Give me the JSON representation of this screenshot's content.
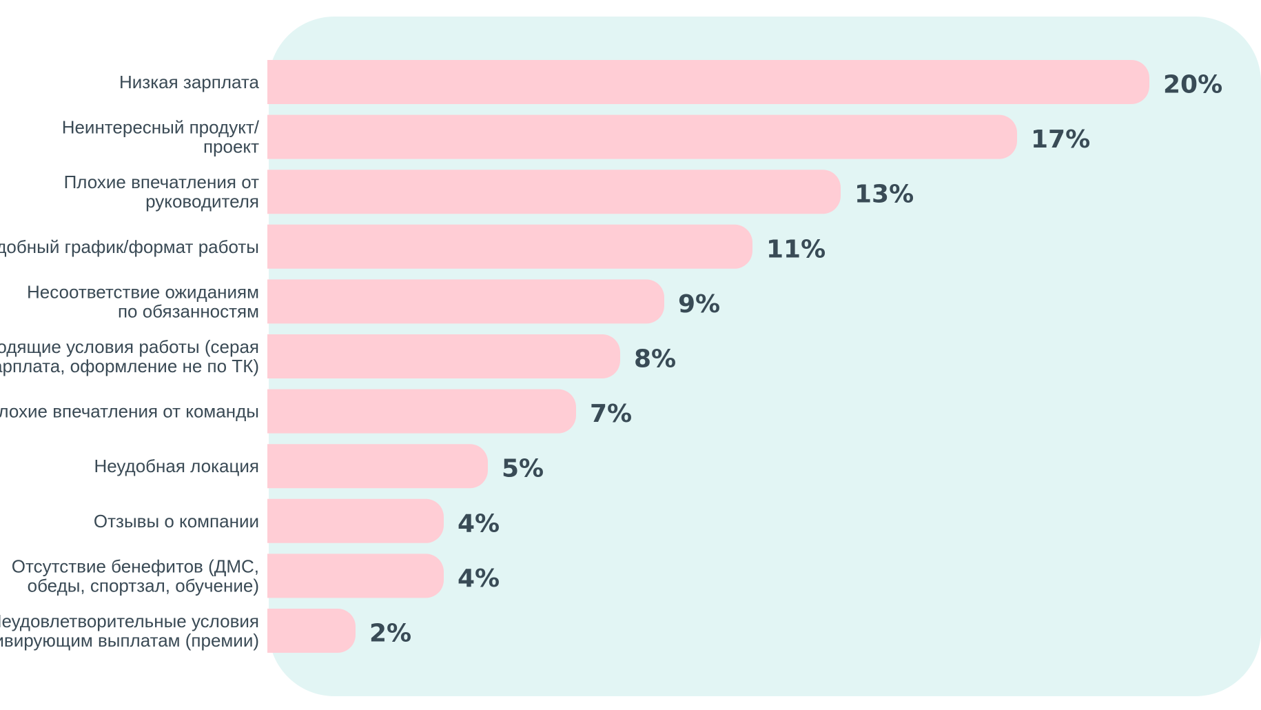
{
  "chart_data": {
    "type": "bar",
    "orientation": "horizontal",
    "title": "",
    "xlabel": "",
    "ylabel": "",
    "grid": false,
    "value_suffix": "%",
    "xlim": [
      0,
      20
    ],
    "categories": [
      "Низкая зарплата",
      "Неинтересный продукт/\nпроект",
      "Плохие впечатления от\nруководителя",
      "Неудобный график/формат работы",
      "Несоответствие ожиданиям\nпо обязанностям",
      "Неподходящие условия работы (серая\nзарплата, оформление не по ТК)",
      "Плохие впечатления от команды",
      "Неудобная локация",
      "Отзывы о компании",
      "Отсутствие бенефитов (ДМС,\nобеды, спортзал, обучение)",
      "Неудовлетворительные условия\nпо мотивирующим выплатам (премии)"
    ],
    "values": [
      20,
      17,
      13,
      11,
      9,
      8,
      7,
      5,
      4,
      4,
      2
    ],
    "value_labels": [
      "20%",
      "17%",
      "13%",
      "11%",
      "9%",
      "8%",
      "7%",
      "5%",
      "4%",
      "4%",
      "2%"
    ],
    "colors": {
      "bar": "#ffcdd5",
      "panel": "#e2f5f4",
      "text": "#3a4a55"
    }
  }
}
